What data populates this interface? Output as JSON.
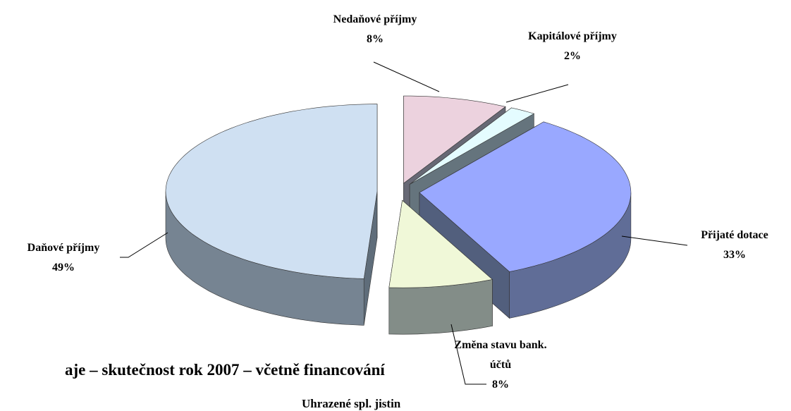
{
  "chart_data": {
    "type": "pie3d",
    "categories": [
      "Nedaňové příjmy",
      "Kapitálové příjmy",
      "Přijaté dotace",
      "Změna stavu bank. účtů",
      "Daňové příjmy"
    ],
    "values": [
      8,
      2,
      33,
      8,
      49
    ],
    "value_labels": [
      "8%",
      "2%",
      "33%",
      "8%",
      "49%"
    ],
    "colors": [
      "#ecd2de",
      "#e4fcff",
      "#99a8ff",
      "#f0f8d8",
      "#cfe0f2"
    ],
    "annotations": [
      "aje – skutečnost rok 2007 – včetně financování",
      "Uhrazené spl. jistin"
    ]
  }
}
